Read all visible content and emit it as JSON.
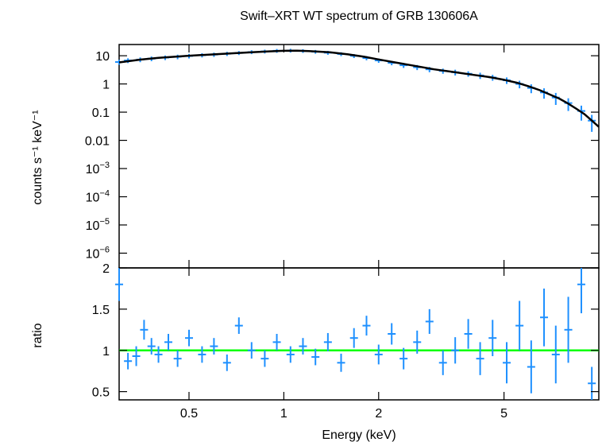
{
  "chart_data": {
    "type": "scatter",
    "title": "Swift–XRT WT spectrum of GRB 130606A",
    "xlabel": "Energy (keV)",
    "x_scale": "log",
    "xlim": [
      0.3,
      10
    ],
    "x_ticks": [
      0.5,
      1,
      2,
      5
    ],
    "x_tick_labels": [
      "0.5",
      "1",
      "2",
      "5"
    ],
    "panels": [
      {
        "id": "spectrum",
        "ylabel": "counts s⁻¹ keV⁻¹",
        "y_scale": "log",
        "ylim": [
          3e-07,
          25
        ],
        "y_ticks": [
          10,
          1,
          0.1,
          0.01,
          0.001,
          0.0001,
          1e-05,
          1e-06
        ],
        "y_tick_labels": [
          {
            "base": "10",
            "exp": ""
          },
          {
            "base": "1",
            "exp": ""
          },
          {
            "base": "0.1",
            "exp": ""
          },
          {
            "base": "0.01",
            "exp": ""
          },
          {
            "base": "10",
            "exp": "−3"
          },
          {
            "base": "10",
            "exp": "−4"
          },
          {
            "base": "10",
            "exp": "−5"
          },
          {
            "base": "10",
            "exp": "−6"
          }
        ],
        "series": [
          {
            "role": "data",
            "color": "#1e90ff",
            "points": [
              {
                "x": 0.3,
                "y": 6.0,
                "yerr": 1.2
              },
              {
                "x": 0.32,
                "y": 6.8,
                "yerr": 1.3
              },
              {
                "x": 0.35,
                "y": 7.3,
                "yerr": 1.4
              },
              {
                "x": 0.38,
                "y": 7.9,
                "yerr": 1.5
              },
              {
                "x": 0.42,
                "y": 8.6,
                "yerr": 1.6
              },
              {
                "x": 0.46,
                "y": 9.2,
                "yerr": 1.7
              },
              {
                "x": 0.5,
                "y": 9.8,
                "yerr": 1.8
              },
              {
                "x": 0.55,
                "y": 10.5,
                "yerr": 1.8
              },
              {
                "x": 0.6,
                "y": 11.0,
                "yerr": 1.9
              },
              {
                "x": 0.66,
                "y": 11.8,
                "yerr": 2.0
              },
              {
                "x": 0.72,
                "y": 12.6,
                "yerr": 2.0
              },
              {
                "x": 0.79,
                "y": 13.5,
                "yerr": 2.1
              },
              {
                "x": 0.87,
                "y": 14.2,
                "yerr": 2.2
              },
              {
                "x": 0.95,
                "y": 15.0,
                "yerr": 2.3
              },
              {
                "x": 1.05,
                "y": 15.3,
                "yerr": 2.3
              },
              {
                "x": 1.15,
                "y": 14.8,
                "yerr": 2.2
              },
              {
                "x": 1.26,
                "y": 13.9,
                "yerr": 2.1
              },
              {
                "x": 1.38,
                "y": 12.8,
                "yerr": 2.0
              },
              {
                "x": 1.52,
                "y": 11.5,
                "yerr": 1.8
              },
              {
                "x": 1.67,
                "y": 9.9,
                "yerr": 1.6
              },
              {
                "x": 1.83,
                "y": 8.3,
                "yerr": 1.4
              },
              {
                "x": 2.0,
                "y": 6.8,
                "yerr": 1.2
              },
              {
                "x": 2.2,
                "y": 5.6,
                "yerr": 1.0
              },
              {
                "x": 2.4,
                "y": 4.6,
                "yerr": 0.9
              },
              {
                "x": 2.65,
                "y": 3.9,
                "yerr": 0.8
              },
              {
                "x": 2.9,
                "y": 3.3,
                "yerr": 0.7
              },
              {
                "x": 3.2,
                "y": 2.9,
                "yerr": 0.6
              },
              {
                "x": 3.5,
                "y": 2.6,
                "yerr": 0.6
              },
              {
                "x": 3.85,
                "y": 2.3,
                "yerr": 0.5
              },
              {
                "x": 4.2,
                "y": 2.0,
                "yerr": 0.5
              },
              {
                "x": 4.6,
                "y": 1.7,
                "yerr": 0.4
              },
              {
                "x": 5.1,
                "y": 1.35,
                "yerr": 0.35
              },
              {
                "x": 5.6,
                "y": 1.0,
                "yerr": 0.3
              },
              {
                "x": 6.1,
                "y": 0.72,
                "yerr": 0.25
              },
              {
                "x": 6.7,
                "y": 0.5,
                "yerr": 0.2
              },
              {
                "x": 7.3,
                "y": 0.33,
                "yerr": 0.15
              },
              {
                "x": 8.0,
                "y": 0.21,
                "yerr": 0.1
              },
              {
                "x": 8.8,
                "y": 0.11,
                "yerr": 0.06
              },
              {
                "x": 9.5,
                "y": 0.05,
                "yerr": 0.03
              }
            ]
          },
          {
            "role": "model",
            "color": "#000000",
            "x": [
              0.3,
              0.35,
              0.4,
              0.5,
              0.6,
              0.7,
              0.8,
              0.9,
              1.0,
              1.1,
              1.2,
              1.4,
              1.6,
              1.8,
              2.0,
              2.3,
              2.6,
              3.0,
              3.5,
              4.0,
              4.5,
              5.0,
              5.5,
              6.0,
              6.5,
              7.0,
              7.5,
              8.0,
              8.5,
              9.0,
              9.5,
              10.0
            ],
            "y": [
              5.8,
              7.3,
              8.4,
              10.0,
              11.2,
              12.3,
              13.4,
              14.3,
              15.0,
              15.1,
              14.7,
              13.2,
              11.2,
              9.2,
              7.4,
              5.6,
              4.4,
              3.3,
              2.6,
              2.1,
              1.75,
              1.4,
              1.1,
              0.82,
              0.6,
              0.42,
              0.3,
              0.2,
              0.13,
              0.085,
              0.05,
              0.03
            ]
          }
        ]
      },
      {
        "id": "ratio",
        "ylabel": "ratio",
        "y_scale": "linear",
        "ylim": [
          0.4,
          2.0
        ],
        "y_ticks": [
          0.5,
          1,
          1.5,
          2
        ],
        "y_tick_labels": [
          "0.5",
          "1",
          "1.5",
          "2"
        ],
        "reference_line": {
          "y": 1,
          "color": "#00ff00"
        },
        "series": [
          {
            "role": "residuals",
            "color": "#1e90ff",
            "points": [
              {
                "x": 0.3,
                "y": 1.8,
                "yerr": 0.2
              },
              {
                "x": 0.32,
                "y": 0.87,
                "yerr": 0.1
              },
              {
                "x": 0.34,
                "y": 0.93,
                "yerr": 0.12
              },
              {
                "x": 0.36,
                "y": 1.25,
                "yerr": 0.12
              },
              {
                "x": 0.38,
                "y": 1.05,
                "yerr": 0.1
              },
              {
                "x": 0.4,
                "y": 0.95,
                "yerr": 0.1
              },
              {
                "x": 0.43,
                "y": 1.1,
                "yerr": 0.1
              },
              {
                "x": 0.46,
                "y": 0.9,
                "yerr": 0.1
              },
              {
                "x": 0.5,
                "y": 1.15,
                "yerr": 0.1
              },
              {
                "x": 0.55,
                "y": 0.95,
                "yerr": 0.1
              },
              {
                "x": 0.6,
                "y": 1.05,
                "yerr": 0.1
              },
              {
                "x": 0.66,
                "y": 0.85,
                "yerr": 0.1
              },
              {
                "x": 0.72,
                "y": 1.3,
                "yerr": 0.1
              },
              {
                "x": 0.79,
                "y": 1.0,
                "yerr": 0.1
              },
              {
                "x": 0.87,
                "y": 0.9,
                "yerr": 0.1
              },
              {
                "x": 0.95,
                "y": 1.1,
                "yerr": 0.1
              },
              {
                "x": 1.05,
                "y": 0.95,
                "yerr": 0.1
              },
              {
                "x": 1.15,
                "y": 1.05,
                "yerr": 0.1
              },
              {
                "x": 1.26,
                "y": 0.92,
                "yerr": 0.1
              },
              {
                "x": 1.38,
                "y": 1.1,
                "yerr": 0.11
              },
              {
                "x": 1.52,
                "y": 0.85,
                "yerr": 0.11
              },
              {
                "x": 1.67,
                "y": 1.15,
                "yerr": 0.12
              },
              {
                "x": 1.83,
                "y": 1.3,
                "yerr": 0.12
              },
              {
                "x": 2.0,
                "y": 0.95,
                "yerr": 0.12
              },
              {
                "x": 2.2,
                "y": 1.2,
                "yerr": 0.13
              },
              {
                "x": 2.4,
                "y": 0.9,
                "yerr": 0.13
              },
              {
                "x": 2.65,
                "y": 1.1,
                "yerr": 0.14
              },
              {
                "x": 2.9,
                "y": 1.35,
                "yerr": 0.15
              },
              {
                "x": 3.2,
                "y": 0.85,
                "yerr": 0.15
              },
              {
                "x": 3.5,
                "y": 1.0,
                "yerr": 0.16
              },
              {
                "x": 3.85,
                "y": 1.2,
                "yerr": 0.18
              },
              {
                "x": 4.2,
                "y": 0.9,
                "yerr": 0.2
              },
              {
                "x": 4.6,
                "y": 1.15,
                "yerr": 0.22
              },
              {
                "x": 5.1,
                "y": 0.85,
                "yerr": 0.25
              },
              {
                "x": 5.6,
                "y": 1.3,
                "yerr": 0.3
              },
              {
                "x": 6.1,
                "y": 0.8,
                "yerr": 0.32
              },
              {
                "x": 6.7,
                "y": 1.4,
                "yerr": 0.35
              },
              {
                "x": 7.3,
                "y": 0.95,
                "yerr": 0.35
              },
              {
                "x": 8.0,
                "y": 1.25,
                "yerr": 0.4
              },
              {
                "x": 8.8,
                "y": 1.8,
                "yerr": 0.35
              },
              {
                "x": 9.5,
                "y": 0.6,
                "yerr": 0.2
              }
            ]
          }
        ]
      }
    ]
  }
}
